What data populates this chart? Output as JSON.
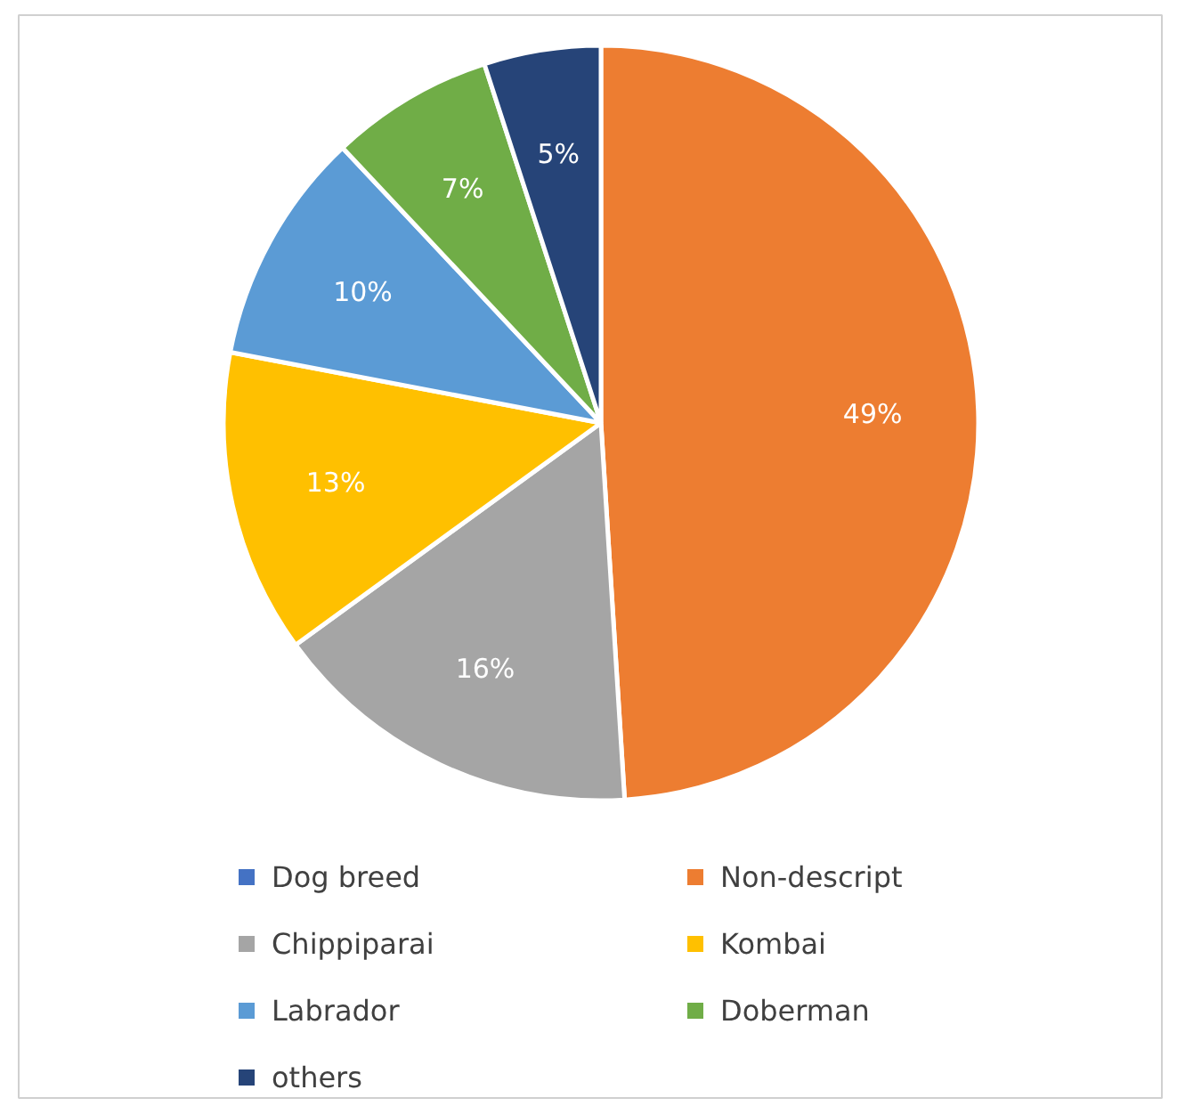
{
  "chart_data": {
    "type": "pie",
    "categories": [
      "Dog breed",
      "Non-descript",
      "Chippiparai",
      "Kombai",
      "Labrador",
      "Doberman",
      "others"
    ],
    "values": [
      0,
      49,
      16,
      13,
      10,
      7,
      5
    ],
    "colors": [
      "#4472c4",
      "#ed7d31",
      "#a5a5a5",
      "#ffc000",
      "#5b9bd5",
      "#70ad47",
      "#264478"
    ],
    "value_labels": [
      null,
      "49%",
      "16%",
      "13%",
      "10%",
      "7%",
      "5%"
    ],
    "legend": "bottom"
  }
}
